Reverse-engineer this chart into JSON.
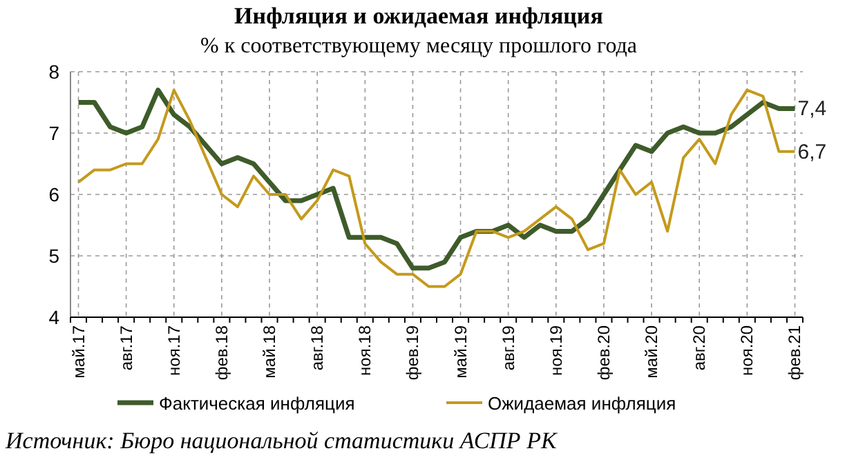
{
  "chart_data": {
    "type": "line",
    "title": "Инфляция и ожидаемая инфляция",
    "subtitle": "% к соответствующему месяцу прошлого года",
    "categories": [
      "май.17",
      null,
      null,
      "авг.17",
      null,
      null,
      "ноя.17",
      null,
      null,
      "фев.18",
      null,
      null,
      "май.18",
      null,
      null,
      "авг.18",
      null,
      null,
      "ноя.18",
      null,
      null,
      "фев.19",
      null,
      null,
      "май.19",
      null,
      null,
      "авг.19",
      null,
      null,
      "ноя.19",
      null,
      null,
      "фев.20",
      null,
      null,
      "май.20",
      null,
      null,
      "авг.20",
      null,
      null,
      "ноя.20",
      null,
      null,
      "фев.21"
    ],
    "series": [
      {
        "name": "Фактическая инфляция",
        "color": "#3e5b2a",
        "values": [
          7.5,
          7.5,
          7.1,
          7.0,
          7.1,
          7.7,
          7.3,
          7.1,
          6.8,
          6.5,
          6.6,
          6.5,
          6.2,
          5.9,
          5.9,
          6.0,
          6.1,
          5.3,
          5.3,
          5.3,
          5.2,
          4.8,
          4.8,
          4.9,
          5.3,
          5.4,
          5.4,
          5.5,
          5.3,
          5.5,
          5.4,
          5.4,
          5.6,
          6.0,
          6.4,
          6.8,
          6.7,
          7.0,
          7.1,
          7.0,
          7.0,
          7.1,
          7.3,
          7.5,
          7.4,
          7.4
        ],
        "value_labels": [
          null,
          null,
          null,
          null,
          null,
          null,
          null,
          null,
          null,
          null,
          null,
          null,
          null,
          null,
          null,
          null,
          null,
          null,
          null,
          null,
          null,
          null,
          null,
          null,
          null,
          null,
          null,
          null,
          null,
          null,
          null,
          null,
          null,
          null,
          null,
          null,
          null,
          null,
          null,
          null,
          null,
          null,
          null,
          null,
          null,
          "7,4"
        ]
      },
      {
        "name": "Ожидаемая инфляция",
        "color": "#c49a1c",
        "values": [
          6.2,
          6.4,
          6.4,
          6.5,
          6.5,
          6.9,
          7.7,
          7.2,
          6.6,
          6.0,
          5.8,
          6.3,
          6.0,
          6.0,
          5.6,
          5.9,
          6.4,
          6.3,
          5.2,
          4.9,
          4.7,
          4.7,
          4.5,
          4.5,
          4.7,
          5.4,
          5.4,
          5.3,
          5.4,
          5.6,
          5.8,
          5.6,
          5.1,
          5.2,
          6.4,
          6.0,
          6.2,
          5.4,
          6.6,
          6.9,
          6.5,
          7.3,
          7.7,
          7.6,
          6.7,
          6.7
        ],
        "value_labels": [
          null,
          null,
          null,
          null,
          null,
          null,
          null,
          null,
          null,
          null,
          null,
          null,
          null,
          null,
          null,
          null,
          null,
          null,
          null,
          null,
          null,
          null,
          null,
          null,
          null,
          null,
          null,
          null,
          null,
          null,
          null,
          null,
          null,
          null,
          null,
          null,
          null,
          null,
          null,
          null,
          null,
          null,
          null,
          null,
          null,
          "6,7"
        ]
      }
    ],
    "ylim": [
      4,
      8
    ],
    "yticks": [
      4,
      5,
      6,
      7,
      8
    ],
    "grid": true,
    "legend": "bottom",
    "annotations": [
      "Источник: Бюро национальной статистики АСПР РК"
    ]
  }
}
